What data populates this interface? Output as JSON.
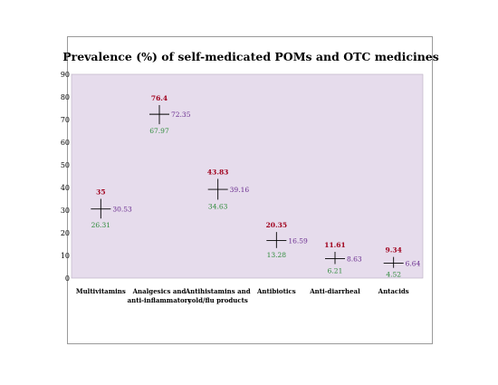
{
  "chart_data": {
    "type": "scatter",
    "title": "Prevalence (%) of self-medicated POMs and OTC medicines",
    "xlabel": "",
    "ylabel": "",
    "ylim": [
      0,
      90
    ],
    "yticks": [
      0,
      10,
      20,
      30,
      40,
      50,
      60,
      70,
      80,
      90
    ],
    "grid": false,
    "legend": "none",
    "categories": [
      [
        "Multivitamins"
      ],
      [
        "Analgesics and",
        "anti-inflammatory"
      ],
      [
        "Antihistamins and",
        "cold/flu products"
      ],
      [
        "Antibiotics"
      ],
      [
        "Anti-diarrheal"
      ],
      [
        "Antacids"
      ]
    ],
    "high": [
      35,
      76.4,
      43.83,
      20.35,
      11.61,
      9.34
    ],
    "low": [
      26.31,
      67.97,
      34.63,
      13.28,
      6.21,
      4.52
    ],
    "mid": [
      30.53,
      72.35,
      39.16,
      16.59,
      8.63,
      6.64
    ],
    "colors": {
      "plot_background": "#e6dcec",
      "high_label": "#a0001c",
      "low_label": "#2e8b3a",
      "mid_label": "#6a2d8f",
      "marker": "#000000"
    }
  }
}
